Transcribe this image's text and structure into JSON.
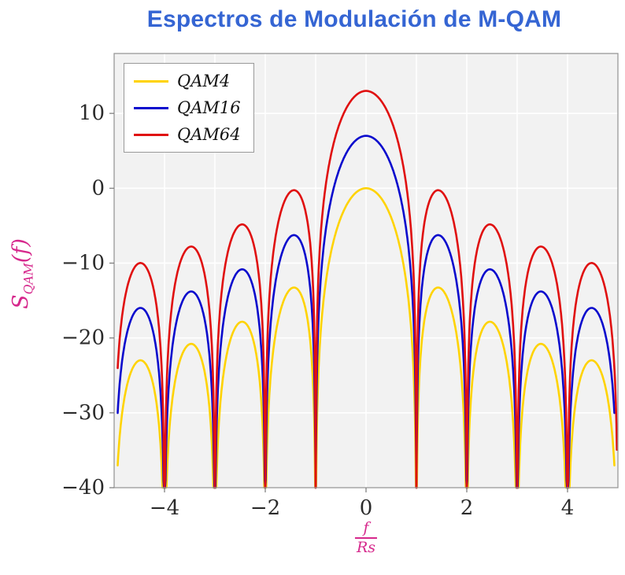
{
  "chart_data": {
    "type": "line",
    "title": "Espectros de Modulación de M-QAM",
    "ylabel": "S_QAM(f)",
    "ylabel_parts": {
      "base": "S",
      "sub": "QAM",
      "arg": "(f)"
    },
    "xlabel": "f/Rs",
    "xlabel_parts": {
      "numerator": "f",
      "denominator": "Rs"
    },
    "xlim": [
      -5,
      5
    ],
    "ylim": [
      -40,
      18
    ],
    "xticks": [
      -4,
      -2,
      0,
      2,
      4
    ],
    "yticks": [
      -40,
      -30,
      -20,
      -10,
      0,
      10
    ],
    "grid": {
      "x_step": 1,
      "y_step": 10
    },
    "legend_position": "top-left",
    "model": {
      "description": "Power spectral density of M-QAM in dB: S(f) = offset_db + 20*log10(|sin(pi f)/(pi f)|), f in units of symbol rate Rs; nulls at integer f, clipped at -40 dB",
      "domain": [
        -4.93,
        4.93
      ],
      "clip_db": -40,
      "sample_step": 0.01
    },
    "series": [
      {
        "name": "QAM4",
        "color": "#FFD300",
        "offset_db": 0,
        "peak_db": 0,
        "domain": [
          -4.93,
          4.93
        ]
      },
      {
        "name": "QAM16",
        "color": "#0A0ACD",
        "offset_db": 7,
        "peak_db": 7,
        "domain": [
          -4.93,
          4.93
        ]
      },
      {
        "name": "QAM64",
        "color": "#E01010",
        "offset_db": 13,
        "peak_db": 13,
        "domain": [
          -4.93,
          4.985
        ]
      }
    ],
    "nulls_at": [
      -4,
      -3,
      -2,
      -1,
      1,
      2,
      3,
      4
    ],
    "colors": {
      "title": "#3565D3",
      "axis_labels": "#D6288C",
      "tick_labels": "#2B2B2B",
      "plot_background": "#F2F2F2",
      "grid_line": "#FFFFFF",
      "frame": "#999999",
      "legend_border": "#999999"
    }
  }
}
